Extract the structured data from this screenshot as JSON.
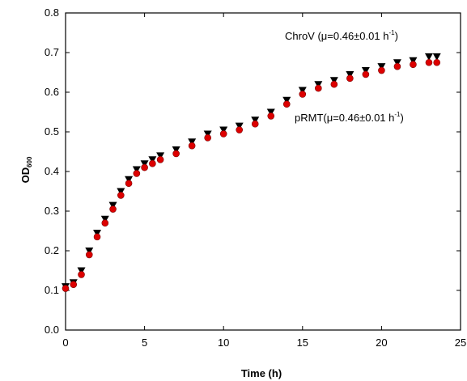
{
  "chart_data": {
    "type": "scatter",
    "xlabel": "Time (h)",
    "ylabel": "OD",
    "ylabel_sub": "600",
    "xlim": [
      0,
      25
    ],
    "ylim": [
      0,
      0.8
    ],
    "xticks": [
      "0",
      "5",
      "10",
      "15",
      "20",
      "25"
    ],
    "yticks": [
      "0.0",
      "0.1",
      "0.2",
      "0.3",
      "0.4",
      "0.5",
      "0.6",
      "0.7",
      "0.8"
    ],
    "grid": false,
    "legend": "none",
    "annotations": [
      {
        "text": "ChroV (μ=0.46±0.01 h",
        "sup": "-1",
        "tail": ")"
      },
      {
        "text": "pRMT(μ=0.46±0.01 h",
        "sup": "-1",
        "tail": ")"
      }
    ],
    "series": [
      {
        "marker": "triangle-down",
        "color": "#000000",
        "x": [
          0,
          0.5,
          1.0,
          1.5,
          2.0,
          2.5,
          3.0,
          3.5,
          4.0,
          4.5,
          5.0,
          5.5,
          6.0,
          7.0,
          8.0,
          9.0,
          10.0,
          11.0,
          12.0,
          13.0,
          14.0,
          15.0,
          16.0,
          17.0,
          18.0,
          19.0,
          20.0,
          21.0,
          22.0,
          23.0,
          23.5
        ],
        "y": [
          0.11,
          0.12,
          0.15,
          0.2,
          0.245,
          0.28,
          0.315,
          0.35,
          0.38,
          0.405,
          0.42,
          0.43,
          0.44,
          0.455,
          0.475,
          0.495,
          0.505,
          0.515,
          0.53,
          0.55,
          0.58,
          0.605,
          0.62,
          0.63,
          0.645,
          0.655,
          0.665,
          0.675,
          0.68,
          0.69,
          0.69
        ]
      },
      {
        "marker": "circle",
        "color": "#dd0000",
        "x": [
          0,
          0.5,
          1.0,
          1.5,
          2.0,
          2.5,
          3.0,
          3.5,
          4.0,
          4.5,
          5.0,
          5.5,
          6.0,
          7.0,
          8.0,
          9.0,
          10.0,
          11.0,
          12.0,
          13.0,
          14.0,
          15.0,
          16.0,
          17.0,
          18.0,
          19.0,
          20.0,
          21.0,
          22.0,
          23.0,
          23.5
        ],
        "y": [
          0.105,
          0.115,
          0.14,
          0.19,
          0.235,
          0.27,
          0.305,
          0.34,
          0.37,
          0.395,
          0.41,
          0.42,
          0.43,
          0.445,
          0.465,
          0.485,
          0.495,
          0.505,
          0.52,
          0.54,
          0.57,
          0.595,
          0.61,
          0.62,
          0.635,
          0.645,
          0.655,
          0.665,
          0.67,
          0.675,
          0.675
        ]
      }
    ]
  }
}
